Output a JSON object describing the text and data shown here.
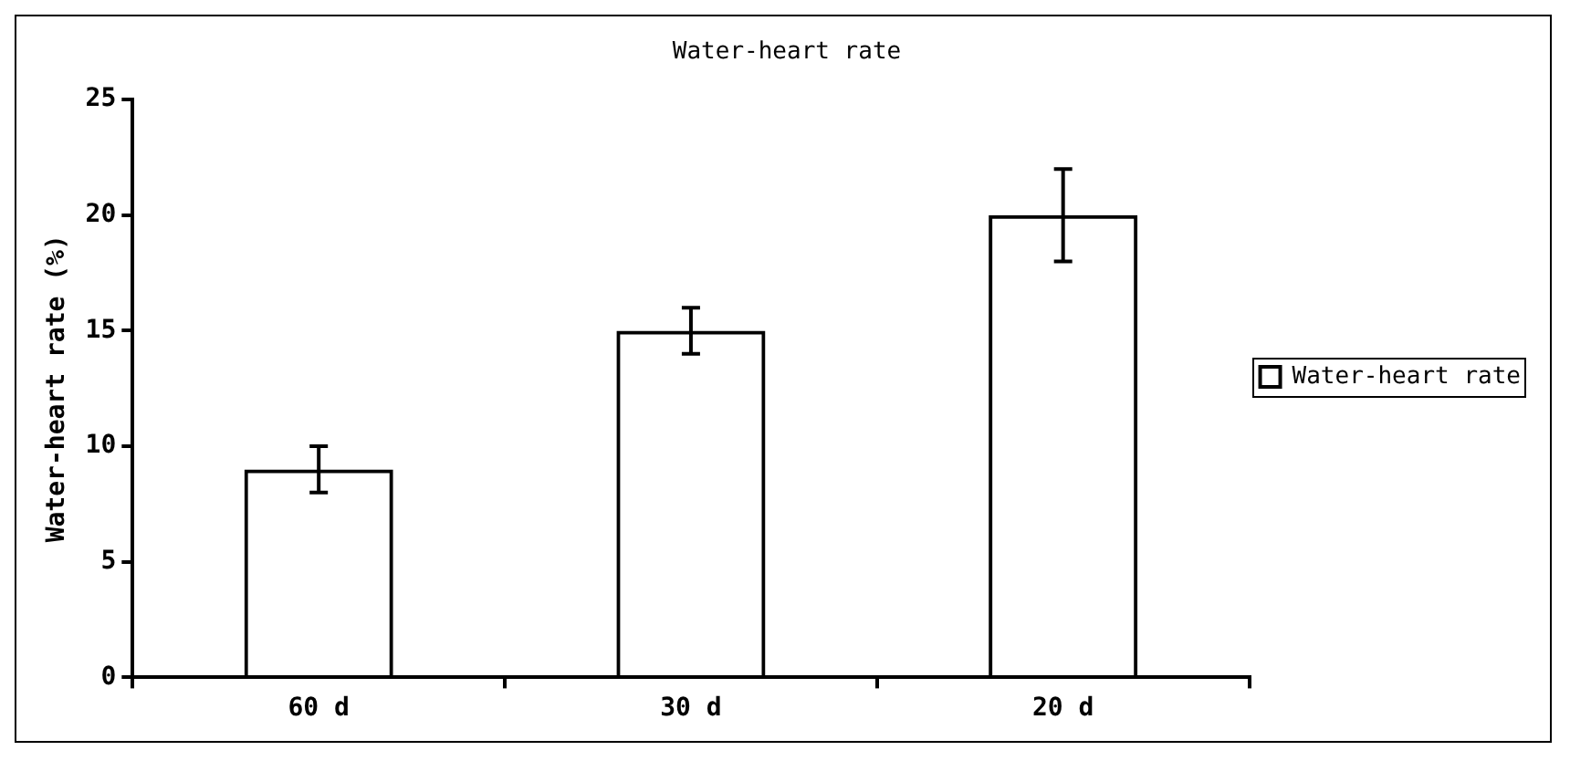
{
  "chart_data": {
    "type": "bar",
    "title": "Water-heart rate",
    "ylabel": "Water-heart rate (%)",
    "categories": [
      "60 d",
      "30 d",
      "20 d"
    ],
    "series": [
      {
        "name": "Water-heart rate",
        "color": "#000000",
        "values": [
          9,
          15,
          20
        ],
        "errors": [
          1,
          1,
          2
        ]
      }
    ],
    "ylim": [
      0,
      25
    ],
    "yticks": [
      0,
      5,
      10,
      15,
      20,
      25
    ],
    "grid": false,
    "legend": "right"
  }
}
